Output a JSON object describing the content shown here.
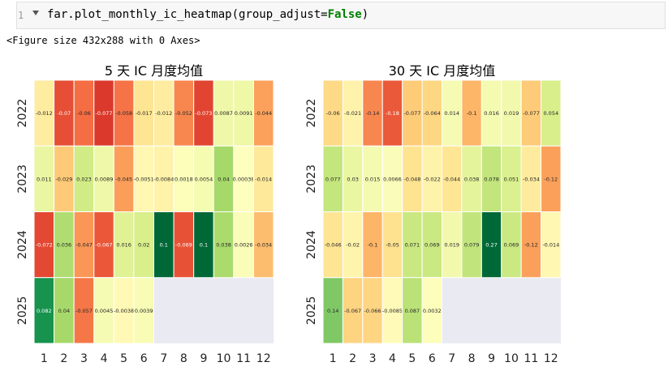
{
  "notebook": {
    "line_number": "1",
    "code_prefix": "far.plot_monthly_ic_heatmap(group_adjust=",
    "code_keyword": "False",
    "code_suffix": ")",
    "output": "<Figure size 432x288 with 0 Axes>"
  },
  "chart_data": [
    {
      "type": "heatmap",
      "title": "5 天 IC 月度均值",
      "x": [
        "1",
        "2",
        "3",
        "4",
        "5",
        "6",
        "7",
        "8",
        "9",
        "10",
        "11",
        "12"
      ],
      "y": [
        "2022",
        "2023",
        "2024",
        "2025"
      ],
      "color_range": [
        -0.1,
        0.1
      ],
      "colormap": "RdYlGn",
      "values": [
        [
          "-0.012",
          "-0.07",
          "-0.06",
          "-0.077",
          "-0.058",
          "-0.017",
          "-0.012",
          "-0.052",
          "-0.073",
          "0.0087",
          "0.0091",
          "-0.044"
        ],
        [
          "0.011",
          "-0.029",
          "0.023",
          "0.0089",
          "-0.045",
          "-0.0051",
          "-0.0084",
          "0.0018",
          "0.0054",
          "0.04",
          "0.00038",
          "-0.014"
        ],
        [
          "-0.072",
          "0.036",
          "-0.047",
          "-0.067",
          "0.016",
          "0.02",
          "0.1",
          "-0.069",
          "0.1",
          "0.038",
          "0.0026",
          "-0.034"
        ],
        [
          "0.082",
          "0.04",
          "-0.057",
          "0.0045",
          "-0.0038",
          "0.0039",
          null,
          null,
          null,
          null,
          null,
          null
        ]
      ]
    },
    {
      "type": "heatmap",
      "title": "30 天 IC 月度均值",
      "x": [
        "1",
        "2",
        "3",
        "4",
        "5",
        "6",
        "7",
        "8",
        "9",
        "10",
        "11",
        "12"
      ],
      "y": [
        "2022",
        "2023",
        "2024",
        "2025"
      ],
      "color_range": [
        -0.27,
        0.27
      ],
      "colormap": "RdYlGn",
      "values": [
        [
          "-0.06",
          "-0.021",
          "-0.14",
          "-0.18",
          "-0.077",
          "-0.064",
          "0.014",
          "-0.1",
          "0.016",
          "0.019",
          "-0.077",
          "0.054"
        ],
        [
          "0.077",
          "0.03",
          "0.015",
          "0.0066",
          "-0.048",
          "-0.022",
          "-0.044",
          "0.038",
          "0.078",
          "0.051",
          "-0.034",
          "-0.12"
        ],
        [
          "-0.046",
          "-0.02",
          "-0.1",
          "-0.05",
          "0.071",
          "0.069",
          "0.019",
          "0.079",
          "0.27",
          "0.069",
          "-0.12",
          "-0.014"
        ],
        [
          "0.14",
          "-0.067",
          "-0.066",
          "-0.0085",
          "0.087",
          "0.0032",
          null,
          null,
          null,
          null,
          null,
          null
        ]
      ]
    }
  ]
}
